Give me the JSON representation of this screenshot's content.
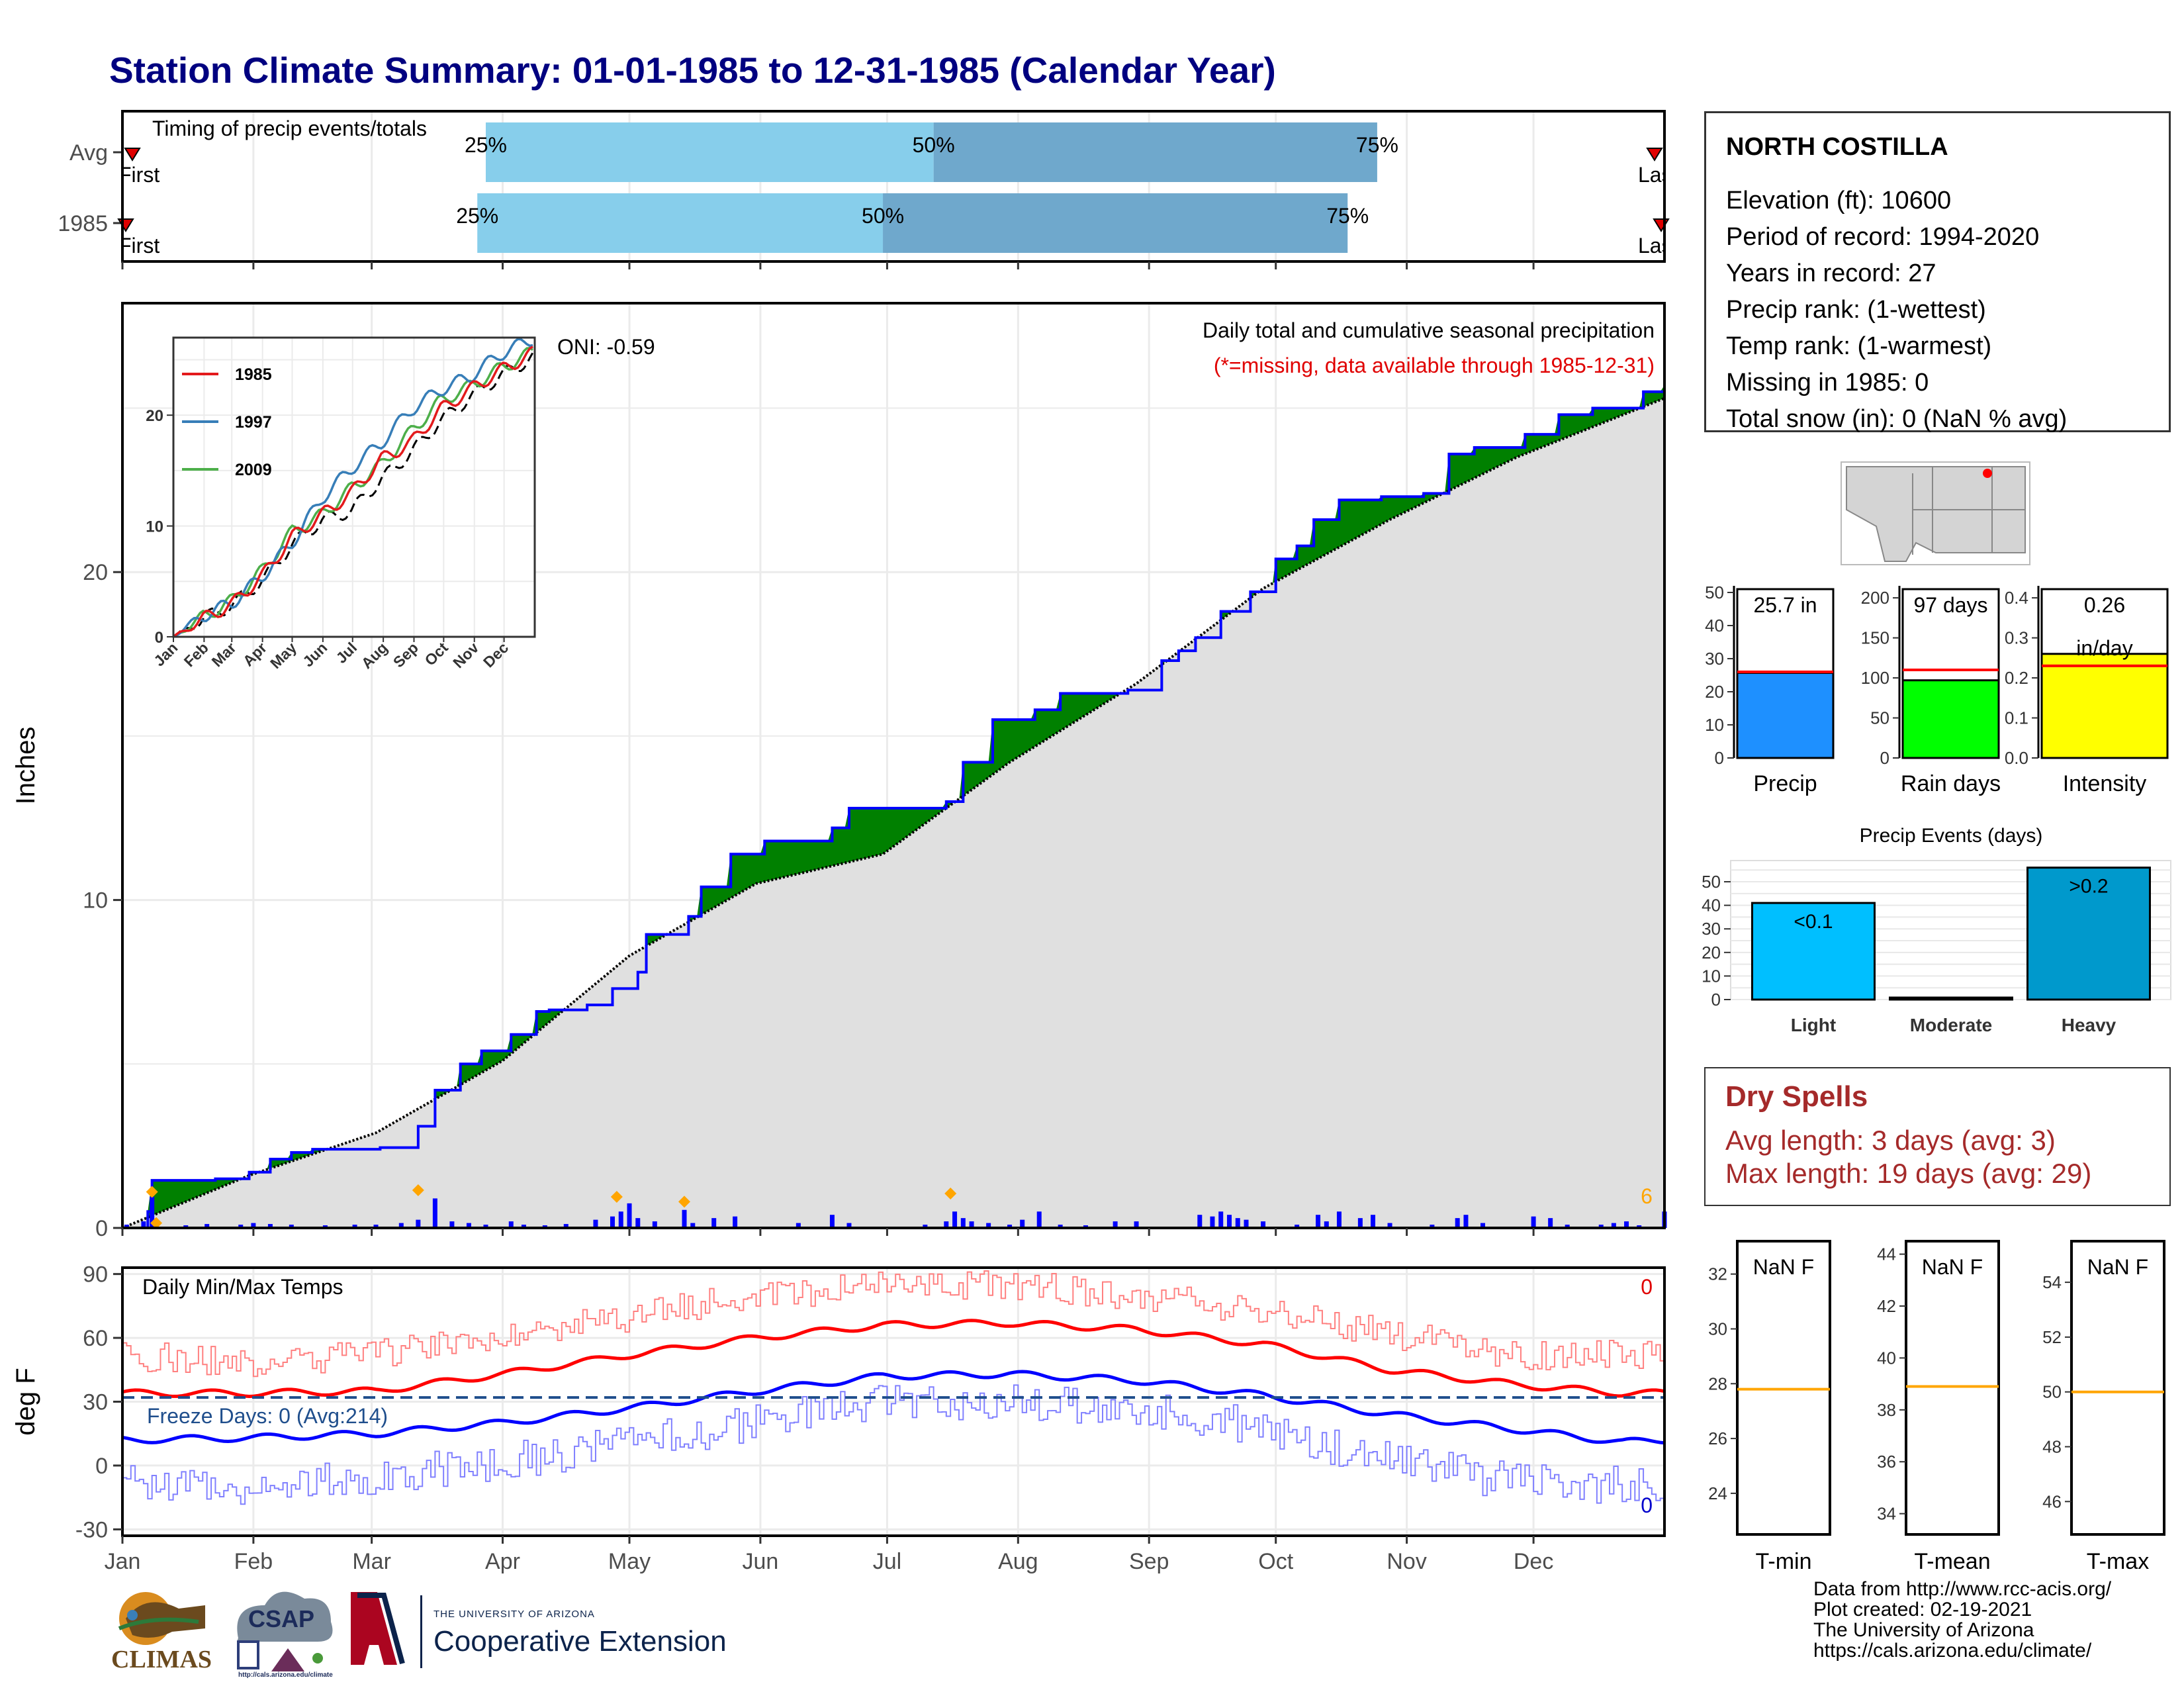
{
  "title": "Station Climate Summary: 01-01-1985 to 12-31-1985 (Calendar Year)",
  "colors": {
    "title": "#000080",
    "above_avg": "#008000",
    "below_avg": "#8B5A12",
    "avg_area": "#e0e0e0",
    "cum_line": "#0000ff",
    "daily_bars": "#0000ff",
    "marker": "#ffa500",
    "tmax": "#ff0000",
    "tmin": "#0000ff",
    "freeze": "#1f4e8c",
    "precip_bar": "#1e90ff",
    "raindays_bar": "#00ff00",
    "intensity_bar": "#ffff00",
    "light_bar": "#00bfff",
    "heavy_bar": "#0099cc",
    "dry_spell": "#a52a2a"
  },
  "timing_panel": {
    "label": "Timing of precip events/totals",
    "rows": [
      "Avg",
      "1985"
    ],
    "first_label": "First",
    "last_label": "Last",
    "avg_pct_doy": [
      86,
      192,
      297
    ],
    "y1985_pct_doy": [
      84,
      180,
      290
    ],
    "pct_labels": [
      "25%",
      "50%",
      "75%"
    ]
  },
  "main_chart": {
    "ylabel": "Inches",
    "yticks": [
      0,
      10,
      20
    ],
    "ylim": [
      0,
      28.2
    ],
    "subtitle": "Daily total and cumulative seasonal precipitation",
    "subtitle2": "(*=missing, data available through 1985-12-31)",
    "oni": "ONI: -0.59",
    "count_label": "6",
    "cum_1985": [
      [
        0,
        0
      ],
      [
        6,
        0.5
      ],
      [
        7,
        1.45
      ],
      [
        22,
        1.5
      ],
      [
        30,
        1.7
      ],
      [
        35,
        2.1
      ],
      [
        40,
        2.3
      ],
      [
        45,
        2.4
      ],
      [
        61,
        2.45
      ],
      [
        70,
        3.1
      ],
      [
        74,
        4.2
      ],
      [
        80,
        5.0
      ],
      [
        85,
        5.4
      ],
      [
        92,
        5.9
      ],
      [
        98,
        6.6
      ],
      [
        101,
        6.65
      ],
      [
        110,
        6.8
      ],
      [
        116,
        7.3
      ],
      [
        122,
        7.8
      ],
      [
        124,
        8.95
      ],
      [
        134,
        9.5
      ],
      [
        137,
        10.4
      ],
      [
        144,
        11.4
      ],
      [
        152,
        11.8
      ],
      [
        168,
        12.2
      ],
      [
        172,
        12.8
      ],
      [
        195,
        13.0
      ],
      [
        199,
        14.2
      ],
      [
        206,
        15.5
      ],
      [
        216,
        15.8
      ],
      [
        222,
        16.3
      ],
      [
        238,
        16.4
      ],
      [
        246,
        17.3
      ],
      [
        250,
        17.6
      ],
      [
        254,
        18.0
      ],
      [
        260,
        18.8
      ],
      [
        267,
        19.4
      ],
      [
        273,
        20.4
      ],
      [
        278,
        20.8
      ],
      [
        282,
        21.6
      ],
      [
        288,
        22.2
      ],
      [
        298,
        22.3
      ],
      [
        308,
        22.4
      ],
      [
        314,
        23.6
      ],
      [
        320,
        23.8
      ],
      [
        332,
        24.2
      ],
      [
        340,
        24.8
      ],
      [
        348,
        25.0
      ],
      [
        360,
        25.5
      ],
      [
        365,
        25.7
      ]
    ],
    "avg_cum": [
      [
        0,
        0
      ],
      [
        30,
        1.6
      ],
      [
        60,
        2.9
      ],
      [
        90,
        5.1
      ],
      [
        120,
        8.3
      ],
      [
        150,
        10.5
      ],
      [
        180,
        11.4
      ],
      [
        210,
        14.2
      ],
      [
        240,
        16.6
      ],
      [
        270,
        19.5
      ],
      [
        300,
        21.6
      ],
      [
        330,
        23.5
      ],
      [
        365,
        25.3
      ]
    ],
    "daily_bars": [
      [
        1,
        0.1
      ],
      [
        5,
        0.2
      ],
      [
        7,
        0.95
      ],
      [
        15,
        0.08
      ],
      [
        20,
        0.12
      ],
      [
        28,
        0.1
      ],
      [
        31,
        0.15
      ],
      [
        35,
        0.12
      ],
      [
        40,
        0.1
      ],
      [
        48,
        0.08
      ],
      [
        55,
        0.1
      ],
      [
        60,
        0.1
      ],
      [
        66,
        0.15
      ],
      [
        70,
        0.25
      ],
      [
        74,
        0.9
      ],
      [
        78,
        0.2
      ],
      [
        82,
        0.15
      ],
      [
        86,
        0.1
      ],
      [
        92,
        0.2
      ],
      [
        95,
        0.1
      ],
      [
        100,
        0.08
      ],
      [
        105,
        0.12
      ],
      [
        112,
        0.25
      ],
      [
        116,
        0.35
      ],
      [
        118,
        0.5
      ],
      [
        120,
        0.75
      ],
      [
        122,
        0.3
      ],
      [
        126,
        0.2
      ],
      [
        133,
        0.55
      ],
      [
        135,
        0.15
      ],
      [
        140,
        0.3
      ],
      [
        145,
        0.35
      ],
      [
        160,
        0.15
      ],
      [
        168,
        0.4
      ],
      [
        172,
        0.15
      ],
      [
        190,
        0.1
      ],
      [
        195,
        0.2
      ],
      [
        197,
        0.5
      ],
      [
        199,
        0.3
      ],
      [
        201,
        0.2
      ],
      [
        205,
        0.15
      ],
      [
        210,
        0.1
      ],
      [
        213,
        0.25
      ],
      [
        217,
        0.5
      ],
      [
        222,
        0.1
      ],
      [
        228,
        0.08
      ],
      [
        235,
        0.2
      ],
      [
        240,
        0.2
      ],
      [
        255,
        0.4
      ],
      [
        258,
        0.35
      ],
      [
        260,
        0.5
      ],
      [
        262,
        0.4
      ],
      [
        264,
        0.3
      ],
      [
        266,
        0.25
      ],
      [
        270,
        0.2
      ],
      [
        278,
        0.1
      ],
      [
        283,
        0.4
      ],
      [
        285,
        0.2
      ],
      [
        288,
        0.5
      ],
      [
        293,
        0.3
      ],
      [
        296,
        0.4
      ],
      [
        300,
        0.15
      ],
      [
        310,
        0.1
      ],
      [
        316,
        0.3
      ],
      [
        318,
        0.4
      ],
      [
        322,
        0.15
      ],
      [
        334,
        0.35
      ],
      [
        338,
        0.3
      ],
      [
        342,
        0.1
      ],
      [
        350,
        0.1
      ],
      [
        353,
        0.15
      ],
      [
        356,
        0.2
      ],
      [
        359,
        0.08
      ],
      [
        365,
        0.5
      ]
    ],
    "marker_days": [
      [
        7,
        1.1
      ],
      [
        70,
        1.15
      ],
      [
        117,
        0.95
      ],
      [
        133,
        0.8
      ],
      [
        196,
        1.05
      ],
      [
        8,
        0.15
      ]
    ]
  },
  "inset": {
    "series": [
      {
        "name": "1985",
        "color": "#e31a1c"
      },
      {
        "name": "1997",
        "color": "#377eb8"
      },
      {
        "name": "2009",
        "color": "#4daf4a"
      }
    ],
    "yticks": [
      0,
      10,
      20
    ],
    "ylim": [
      0,
      27
    ],
    "months": [
      "Jan",
      "Feb",
      "Mar",
      "Apr",
      "May",
      "Jun",
      "Jul",
      "Aug",
      "Sep",
      "Oct",
      "Nov",
      "Dec"
    ],
    "s1985": [
      [
        0,
        0
      ],
      [
        30,
        1.6
      ],
      [
        60,
        3.0
      ],
      [
        90,
        5.5
      ],
      [
        120,
        9.0
      ],
      [
        150,
        11.0
      ],
      [
        180,
        13.0
      ],
      [
        210,
        16.0
      ],
      [
        240,
        17.5
      ],
      [
        270,
        20.5
      ],
      [
        300,
        22.3
      ],
      [
        330,
        24.0
      ],
      [
        365,
        25.7
      ]
    ],
    "s1997": [
      [
        0,
        0
      ],
      [
        30,
        1.9
      ],
      [
        60,
        3.1
      ],
      [
        90,
        5.5
      ],
      [
        120,
        8.5
      ],
      [
        150,
        12.5
      ],
      [
        180,
        15.2
      ],
      [
        210,
        17.5
      ],
      [
        240,
        20.5
      ],
      [
        270,
        22.3
      ],
      [
        300,
        23.5
      ],
      [
        330,
        25.5
      ],
      [
        365,
        27.0
      ]
    ],
    "s2009": [
      [
        0,
        0
      ],
      [
        30,
        1.8
      ],
      [
        60,
        3.3
      ],
      [
        90,
        6.0
      ],
      [
        120,
        9.5
      ],
      [
        150,
        11.0
      ],
      [
        180,
        13.4
      ],
      [
        210,
        15.5
      ],
      [
        240,
        18.5
      ],
      [
        270,
        21.3
      ],
      [
        300,
        22.6
      ],
      [
        330,
        24.2
      ],
      [
        365,
        25.8
      ]
    ],
    "savg": [
      [
        0,
        0
      ],
      [
        30,
        1.6
      ],
      [
        60,
        2.9
      ],
      [
        90,
        5.1
      ],
      [
        120,
        8.3
      ],
      [
        150,
        10.5
      ],
      [
        180,
        11.4
      ],
      [
        210,
        14.2
      ],
      [
        240,
        16.6
      ],
      [
        270,
        19.5
      ],
      [
        300,
        21.6
      ],
      [
        330,
        23.5
      ],
      [
        365,
        25.3
      ]
    ]
  },
  "temp_chart": {
    "ylabel": "deg F",
    "title": "Daily Min/Max Temps",
    "yticks": [
      -30,
      0,
      30,
      60,
      90
    ],
    "ylim": [
      -33,
      93
    ],
    "freeze_label": "Freeze Days: 0 (Avg:214)",
    "freeze_line": 32,
    "count_hot": "0",
    "count_cold": "0",
    "months": [
      "Jan",
      "Feb",
      "Mar",
      "Apr",
      "May",
      "Jun",
      "Jul",
      "Aug",
      "Sep",
      "Oct",
      "Nov",
      "Dec"
    ],
    "avg_max": [
      [
        0,
        34
      ],
      [
        30,
        34
      ],
      [
        60,
        35
      ],
      [
        90,
        43
      ],
      [
        120,
        52
      ],
      [
        150,
        60
      ],
      [
        180,
        66
      ],
      [
        210,
        67
      ],
      [
        240,
        64
      ],
      [
        270,
        57
      ],
      [
        300,
        45
      ],
      [
        330,
        38
      ],
      [
        355,
        34
      ],
      [
        365,
        34
      ]
    ],
    "avg_min": [
      [
        0,
        12
      ],
      [
        30,
        13
      ],
      [
        60,
        15
      ],
      [
        90,
        20
      ],
      [
        120,
        27
      ],
      [
        150,
        35
      ],
      [
        180,
        42
      ],
      [
        210,
        43
      ],
      [
        240,
        40
      ],
      [
        270,
        33
      ],
      [
        300,
        24
      ],
      [
        330,
        17
      ],
      [
        355,
        11
      ],
      [
        365,
        12
      ]
    ],
    "daily_max_base": [
      [
        0,
        52
      ],
      [
        30,
        48
      ],
      [
        60,
        52
      ],
      [
        90,
        62
      ],
      [
        120,
        70
      ],
      [
        150,
        80
      ],
      [
        180,
        84
      ],
      [
        210,
        85
      ],
      [
        240,
        80
      ],
      [
        270,
        73
      ],
      [
        300,
        62
      ],
      [
        330,
        52
      ],
      [
        365,
        52
      ]
    ],
    "daily_min_base": [
      [
        0,
        -8
      ],
      [
        30,
        -10
      ],
      [
        60,
        -5
      ],
      [
        90,
        2
      ],
      [
        120,
        10
      ],
      [
        150,
        20
      ],
      [
        180,
        30
      ],
      [
        210,
        30
      ],
      [
        240,
        26
      ],
      [
        270,
        18
      ],
      [
        300,
        2
      ],
      [
        330,
        -8
      ],
      [
        365,
        -10
      ]
    ]
  },
  "station_info": {
    "name": "NORTH COSTILLA",
    "lines": [
      "Elevation (ft): 10600",
      "Period of record: 1994-2020",
      "Years in record: 27",
      "Precip rank:  (1-wettest)",
      "Temp rank:  (1-warmest)",
      "Missing in 1985: 0",
      "Total snow (in): 0 (NaN % avg)"
    ]
  },
  "summary_bars": [
    {
      "label": "Precip",
      "value": 25.7,
      "avg": 26,
      "value_text": "25.7 in",
      "yticks": [
        0,
        10,
        20,
        30,
        40,
        50
      ],
      "ymax": 52,
      "color": "#1e90ff"
    },
    {
      "label": "Rain days",
      "value": 97,
      "avg": 110,
      "value_text": "97 days",
      "yticks": [
        0,
        50,
        100,
        150,
        200
      ],
      "ymax": 215,
      "color": "#00ff00"
    },
    {
      "label": "Intensity",
      "value": 0.26,
      "avg": 0.23,
      "value_text": "0.26",
      "value_text2": "in/day",
      "yticks": [
        "0.0",
        "0.1",
        "0.2",
        "0.3",
        "0.4"
      ],
      "ymax": 0.43,
      "color": "#ffff00"
    }
  ],
  "precip_events": {
    "title": "Precip Events (days)",
    "categories": [
      "Light",
      "Moderate",
      "Heavy"
    ],
    "values": [
      41,
      0,
      56
    ],
    "labels": [
      "<0.1",
      "",
      ">0.2"
    ],
    "yticks": [
      0,
      10,
      20,
      30,
      40,
      50
    ],
    "ymax": 59
  },
  "dry_spells": {
    "title": "Dry Spells",
    "avg_line": "Avg length: 3 days (avg: 3)",
    "max_line": "Max length: 19 days (avg: 29)"
  },
  "temp_summary": [
    {
      "label": "T-min",
      "value_text": "NaN F",
      "yticks": [
        24,
        26,
        28,
        30,
        32
      ],
      "ylim": [
        22.5,
        33.2
      ],
      "avg": 27.8
    },
    {
      "label": "T-mean",
      "value_text": "NaN F",
      "yticks": [
        34,
        36,
        38,
        40,
        42,
        44
      ],
      "ylim": [
        33.2,
        44.5
      ],
      "avg": 38.9
    },
    {
      "label": "T-max",
      "value_text": "NaN F",
      "yticks": [
        46,
        48,
        50,
        52,
        54
      ],
      "ylim": [
        44.8,
        55.5
      ],
      "avg": 50.0
    }
  ],
  "footer": {
    "lines": [
      "Data from http://www.rcc-acis.org/",
      "Plot created: 02-19-2021",
      "The University of Arizona",
      "https://cals.arizona.edu/climate/"
    ]
  },
  "logos": {
    "climas": "CLIMAS",
    "csap": "CSAP",
    "csap_url": "http://cals.arizona.edu/climate",
    "ua_small": "THE UNIVERSITY OF ARIZONA",
    "ua_big": "Cooperative Extension"
  }
}
